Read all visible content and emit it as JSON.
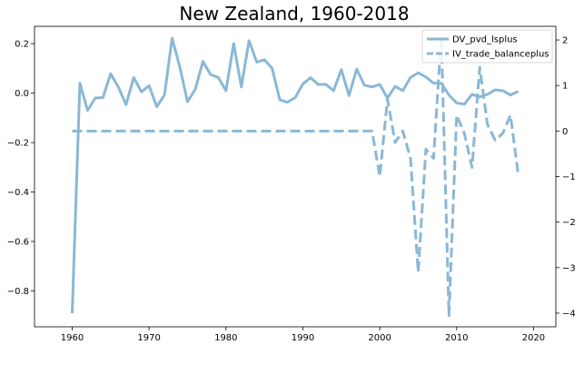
{
  "chart_data": {
    "type": "line",
    "title": "New Zealand, 1960-2018",
    "xlabel": "",
    "ylabel_left": "",
    "ylabel_right": "",
    "xlim": [
      1955.1,
      2022.9
    ],
    "ylim_left": [
      -0.945,
      0.27
    ],
    "ylim_right": [
      -4.3,
      2.3
    ],
    "x_ticks": [
      1960,
      1970,
      1980,
      1990,
      2000,
      2010,
      2020
    ],
    "y_left_ticks": [
      0.2,
      0.0,
      -0.2,
      -0.4,
      -0.6,
      -0.8
    ],
    "y_left_tick_labels": [
      "0.2",
      "0.0",
      "−0.2",
      "−0.4",
      "−0.6",
      "−0.8"
    ],
    "y_right_ticks": [
      2,
      1,
      0,
      -1,
      -2,
      -3,
      -4
    ],
    "y_right_tick_labels": [
      "2",
      "1",
      "0",
      "−1",
      "−2",
      "−3",
      "−4"
    ],
    "grid": false,
    "legend_position": "top-right",
    "color": "#8ab8d6",
    "series": [
      {
        "name": "DV_pvd_lsplus",
        "axis": "left",
        "style": "solid",
        "x": [
          1960,
          1961,
          1962,
          1963,
          1964,
          1965,
          1966,
          1967,
          1968,
          1969,
          1970,
          1971,
          1972,
          1973,
          1974,
          1975,
          1976,
          1977,
          1978,
          1979,
          1980,
          1981,
          1982,
          1983,
          1984,
          1985,
          1986,
          1987,
          1988,
          1989,
          1990,
          1991,
          1992,
          1993,
          1994,
          1995,
          1996,
          1997,
          1998,
          1999,
          2000,
          2001,
          2002,
          2003,
          2004,
          2005,
          2006,
          2007,
          2008,
          2009,
          2010,
          2011,
          2012,
          2013,
          2014,
          2015,
          2016,
          2017,
          2018
        ],
        "values": [
          -0.89,
          0.04,
          -0.07,
          -0.02,
          -0.018,
          0.078,
          0.025,
          -0.047,
          0.063,
          0.005,
          0.03,
          -0.055,
          -0.008,
          0.222,
          0.105,
          -0.035,
          0.015,
          0.128,
          0.075,
          0.063,
          0.01,
          0.2,
          0.025,
          0.212,
          0.125,
          0.135,
          0.1,
          -0.027,
          -0.037,
          -0.018,
          0.037,
          0.062,
          0.035,
          0.035,
          0.01,
          0.095,
          -0.01,
          0.097,
          0.032,
          0.025,
          0.035,
          -0.02,
          0.027,
          0.01,
          0.063,
          0.082,
          0.065,
          0.04,
          0.04,
          -0.008,
          -0.04,
          -0.045,
          -0.005,
          -0.015,
          -0.005,
          0.013,
          0.01,
          -0.008,
          0.007
        ]
      },
      {
        "name": "IV_trade_balanceplus",
        "axis": "right",
        "style": "dashed",
        "x": [
          1960,
          1961,
          1962,
          1963,
          1964,
          1965,
          1966,
          1967,
          1968,
          1969,
          1970,
          1971,
          1972,
          1973,
          1974,
          1975,
          1976,
          1977,
          1978,
          1979,
          1980,
          1981,
          1982,
          1983,
          1984,
          1985,
          1986,
          1987,
          1988,
          1989,
          1990,
          1991,
          1992,
          1993,
          1994,
          1995,
          1996,
          1997,
          1998,
          1999,
          2000,
          2001,
          2002,
          2003,
          2004,
          2005,
          2006,
          2007,
          2008,
          2009,
          2010,
          2011,
          2012,
          2013,
          2014,
          2015,
          2016,
          2017,
          2018
        ],
        "values": [
          0,
          0,
          0,
          0,
          0,
          0,
          0,
          0,
          0,
          0,
          0,
          0,
          0,
          0,
          0,
          0,
          0,
          0,
          0,
          0,
          0,
          0,
          0,
          0,
          0,
          0,
          0,
          0,
          0,
          0,
          0,
          0,
          0,
          0,
          0,
          0,
          0,
          0,
          0,
          0,
          -1.0,
          0.7,
          -0.25,
          0.0,
          -0.6,
          -3.1,
          -0.4,
          -0.6,
          2.1,
          -4.05,
          0.35,
          -0.05,
          -0.8,
          1.4,
          0.15,
          -0.2,
          -0.05,
          0.35,
          -0.95
        ]
      }
    ]
  }
}
